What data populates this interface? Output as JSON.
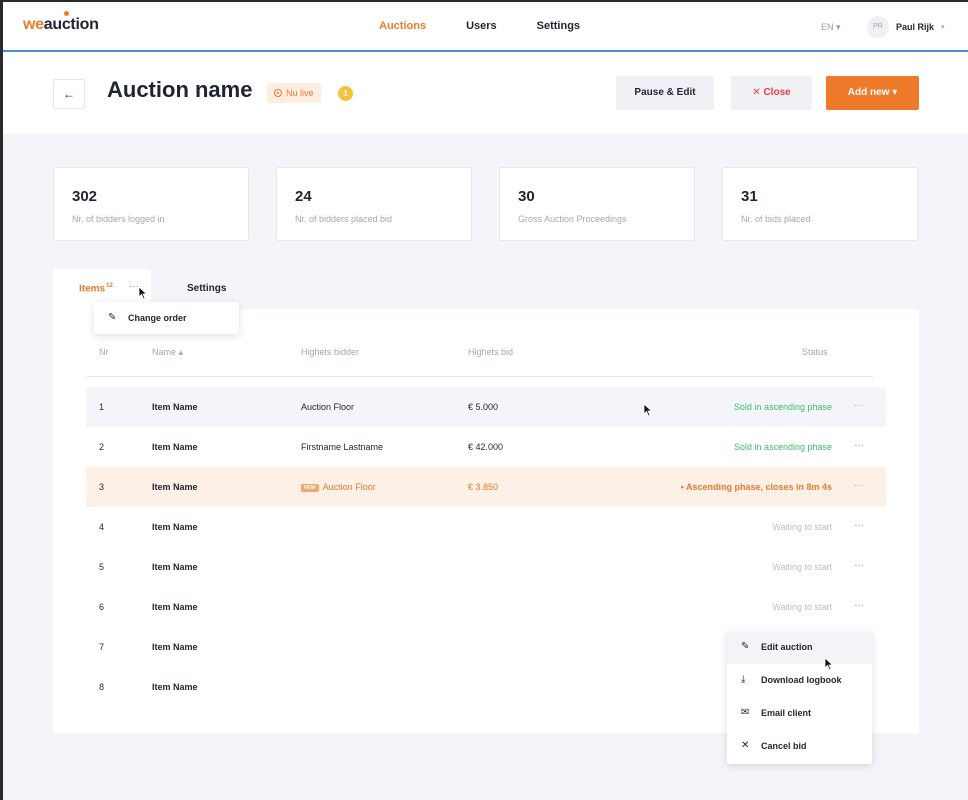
{
  "brand": {
    "logo_we": "we",
    "logo_auction": "auction"
  },
  "nav": {
    "links": [
      "Auctions",
      "Users",
      "Settings"
    ],
    "active": "Auctions",
    "language": "EN ▾",
    "user_initials": "PR",
    "user_name": "Paul Rijk",
    "user_caret": "▾"
  },
  "header": {
    "back_icon": "←",
    "title": "Auction name",
    "live_badge": "Nu live",
    "notification_count": "1",
    "pause_label": "Pause & Edit",
    "close_label": "✕  Close",
    "add_label": "Add new  ▾"
  },
  "stats": [
    {
      "value": "302",
      "label": "Nr. of bidders logged in"
    },
    {
      "value": "24",
      "label": "Nr. of bidders placed bid"
    },
    {
      "value": "30",
      "label": "Gross Auction Proceedings"
    },
    {
      "value": "31",
      "label": "Nr. of bids placed"
    }
  ],
  "tabs": {
    "items_label": "Items",
    "items_count": "12",
    "more_dots": "···",
    "settings_label": "Settings"
  },
  "order_menu": {
    "icon": "pencil-icon",
    "label": "Change order"
  },
  "table": {
    "headers": {
      "nr": "Nr",
      "name": "Name ▴",
      "bidder": "Highets bidder",
      "bid": "Highets bid",
      "status": "Status"
    },
    "rows": [
      {
        "nr": "1",
        "name": "Item Name",
        "bidder": "Auction Floor",
        "bid": "€ 5.000",
        "status": "Sold in ascending phase",
        "status_type": "green",
        "highlight": "gray",
        "is_new": false
      },
      {
        "nr": "2",
        "name": "Item Name",
        "bidder": "Firstname Lastname",
        "bid": "€ 42.000",
        "status": "Sold in ascending phase",
        "status_type": "green",
        "highlight": "",
        "is_new": false
      },
      {
        "nr": "3",
        "name": "Item Name",
        "bidder": "Auction Floor",
        "bid": "€ 3.850",
        "status": "•  Ascending phase, closes in 8m 4s",
        "status_type": "orange",
        "highlight": "orange",
        "is_new": true
      },
      {
        "nr": "4",
        "name": "Item Name",
        "bidder": "",
        "bid": "",
        "status": "Waiting to start",
        "status_type": "grey",
        "highlight": "",
        "is_new": false
      },
      {
        "nr": "5",
        "name": "Item Name",
        "bidder": "",
        "bid": "",
        "status": "Waiting to start",
        "status_type": "grey",
        "highlight": "",
        "is_new": false
      },
      {
        "nr": "6",
        "name": "Item Name",
        "bidder": "",
        "bid": "",
        "status": "Waiting to start",
        "status_type": "grey",
        "highlight": "",
        "is_new": false
      },
      {
        "nr": "7",
        "name": "Item Name",
        "bidder": "",
        "bid": "",
        "status": "",
        "status_type": "grey",
        "highlight": "",
        "is_new": false
      },
      {
        "nr": "8",
        "name": "Item Name",
        "bidder": "",
        "bid": "",
        "status": "",
        "status_type": "grey",
        "highlight": "",
        "is_new": false
      }
    ],
    "new_tag": "NEW",
    "row_dots": "···"
  },
  "row_menu": [
    {
      "icon": "✎",
      "icon_name": "pencil-icon",
      "label": "Edit auction"
    },
    {
      "icon": "⤓",
      "icon_name": "download-icon",
      "label": "Download logbook"
    },
    {
      "icon": "✉",
      "icon_name": "mail-icon",
      "label": "Email client"
    },
    {
      "icon": "✕",
      "icon_name": "close-icon",
      "label": "Cancel bid"
    }
  ],
  "colors": {
    "accent": "#ee7a2c",
    "success": "#3dbf6a",
    "danger": "#ee3b4a",
    "nav_border": "#4a90d9"
  }
}
